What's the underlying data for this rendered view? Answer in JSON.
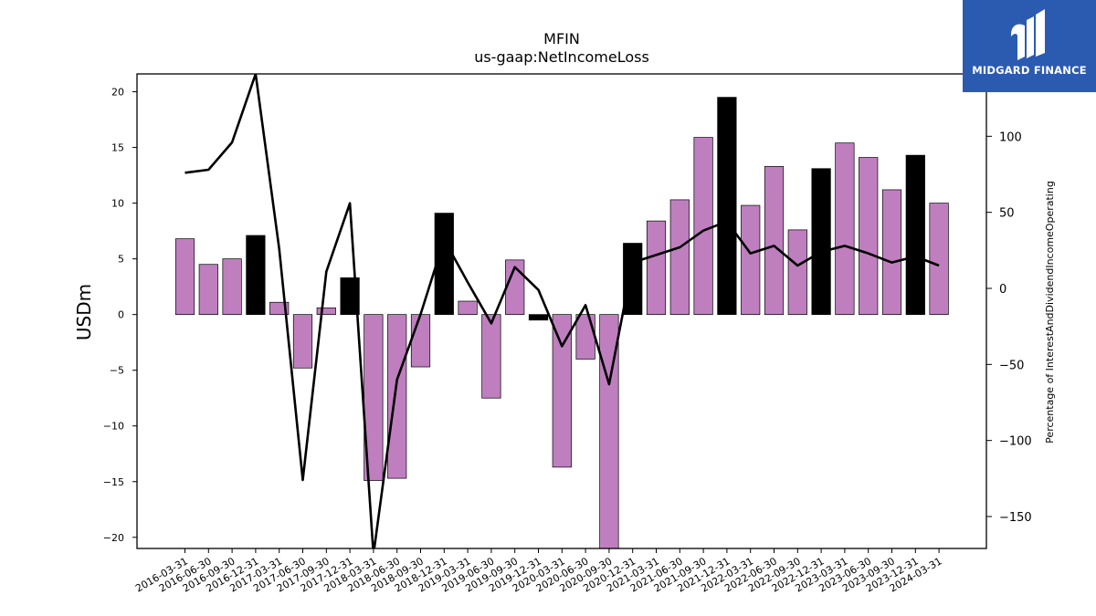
{
  "chart_data": {
    "type": "bar",
    "title": "MFIN",
    "subtitle": "us-gaap:NetIncomeLoss",
    "ylabel": "USDm",
    "y2label": "Percentage of InterestAndDividendIncomeOperating",
    "ylim": [
      -21,
      21.6
    ],
    "y2lim": [
      -171,
      141
    ],
    "yticks": [
      -20,
      -15,
      -10,
      -5,
      0,
      5,
      10,
      15,
      20
    ],
    "y2ticks": [
      -150,
      -100,
      -50,
      0,
      50,
      100
    ],
    "categories": [
      "2016-03-31",
      "2016-06-30",
      "2016-09-30",
      "2016-12-31",
      "2017-03-31",
      "2017-06-30",
      "2017-09-30",
      "2017-12-31",
      "2018-03-31",
      "2018-06-30",
      "2018-09-30",
      "2018-12-31",
      "2019-03-31",
      "2019-06-30",
      "2019-09-30",
      "2019-12-31",
      "2020-03-31",
      "2020-06-30",
      "2020-09-30",
      "2020-12-31",
      "2021-03-31",
      "2021-06-30",
      "2021-09-30",
      "2021-12-31",
      "2022-03-31",
      "2022-06-30",
      "2022-09-30",
      "2022-12-31",
      "2023-03-31",
      "2023-06-30",
      "2023-09-30",
      "2023-12-31",
      "2024-03-31"
    ],
    "series": [
      {
        "type": "bar",
        "values": [
          6.8,
          4.5,
          5.0,
          7.1,
          1.1,
          -4.8,
          0.6,
          3.3,
          -14.9,
          -14.7,
          -4.7,
          9.1,
          1.2,
          -7.5,
          4.9,
          -0.5,
          -13.7,
          -4.0,
          -21,
          6.4,
          8.4,
          10.3,
          15.9,
          19.5,
          9.8,
          13.3,
          7.6,
          13.1,
          15.4,
          14.1,
          11.2,
          14.3,
          10.0
        ],
        "colors": [
          "#bf7fbf",
          "#bf7fbf",
          "#bf7fbf",
          "#000000",
          "#bf7fbf",
          "#bf7fbf",
          "#bf7fbf",
          "#000000",
          "#bf7fbf",
          "#bf7fbf",
          "#bf7fbf",
          "#000000",
          "#bf7fbf",
          "#bf7fbf",
          "#bf7fbf",
          "#000000",
          "#bf7fbf",
          "#bf7fbf",
          "#bf7fbf",
          "#000000",
          "#bf7fbf",
          "#bf7fbf",
          "#bf7fbf",
          "#000000",
          "#bf7fbf",
          "#bf7fbf",
          "#bf7fbf",
          "#000000",
          "#bf7fbf",
          "#bf7fbf",
          "#bf7fbf",
          "#000000",
          "#bf7fbf"
        ]
      },
      {
        "type": "line",
        "axis": "right",
        "color": "#000000",
        "values": [
          76,
          78,
          96,
          141,
          26,
          -126,
          11,
          56,
          -175,
          -60,
          -17,
          32,
          4,
          -23,
          14,
          -1,
          -38,
          -11,
          -63,
          17,
          22,
          27,
          38,
          44,
          23,
          28,
          15,
          24,
          28,
          23,
          17,
          21,
          15
        ]
      }
    ]
  },
  "logo": {
    "text": "MIDGARD FINANCE"
  }
}
